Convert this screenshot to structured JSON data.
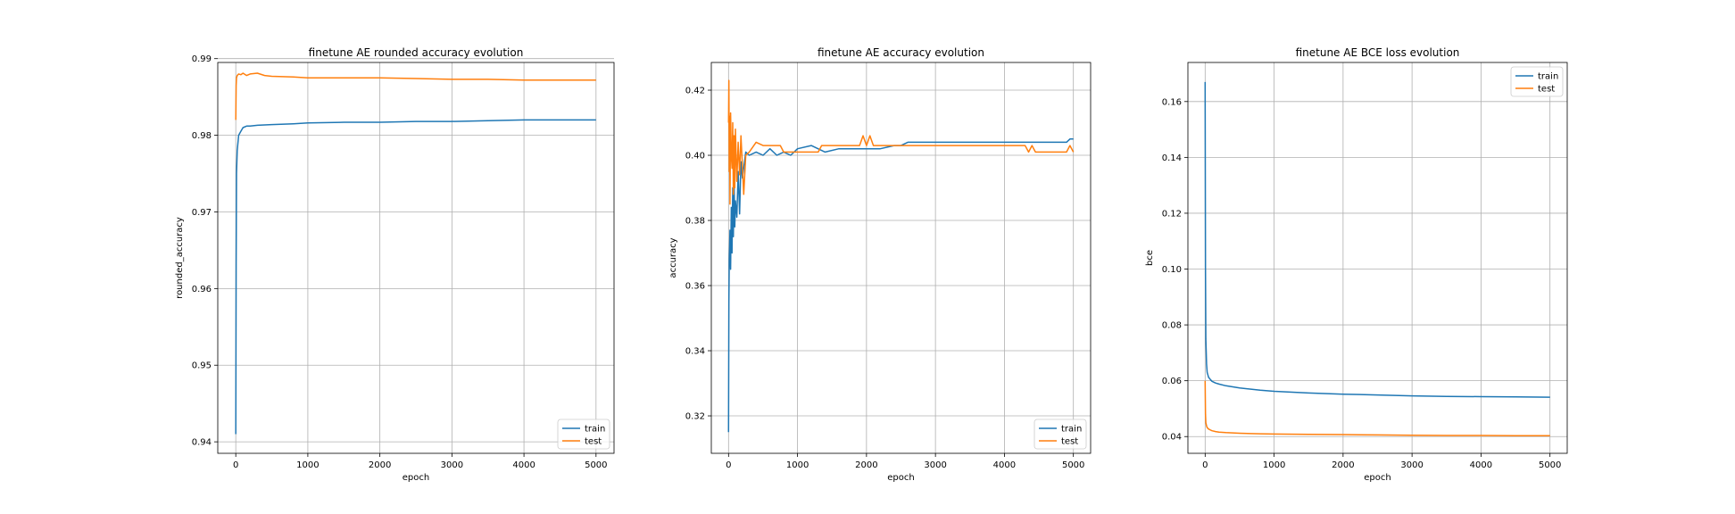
{
  "chart_data": [
    {
      "type": "line",
      "title": "finetune AE rounded accuracy evolution",
      "xlabel": "epoch",
      "ylabel": "rounded_accuracy",
      "xlim": [
        -250,
        5250
      ],
      "ylim": [
        0.9385,
        0.9895
      ],
      "xticks": [
        0,
        1000,
        2000,
        3000,
        4000,
        5000
      ],
      "xtick_labels": [
        "0",
        "1000",
        "2000",
        "3000",
        "4000",
        "5000"
      ],
      "yticks": [
        0.94,
        0.95,
        0.96,
        0.97,
        0.98,
        0.99
      ],
      "ytick_labels": [
        "0.94",
        "0.95",
        "0.96",
        "0.97",
        "0.98",
        "0.99"
      ],
      "grid": true,
      "legend": "lower-right",
      "series": [
        {
          "name": "train",
          "color": "#1f77b4",
          "x": [
            0,
            5,
            10,
            20,
            40,
            70,
            100,
            150,
            200,
            300,
            500,
            800,
            1000,
            1500,
            2000,
            2500,
            3000,
            3500,
            4000,
            4500,
            5000
          ],
          "y": [
            0.941,
            0.963,
            0.975,
            0.978,
            0.98,
            0.9805,
            0.981,
            0.9812,
            0.9812,
            0.9813,
            0.9814,
            0.9815,
            0.9816,
            0.9817,
            0.9817,
            0.9818,
            0.9818,
            0.9819,
            0.982,
            0.982,
            0.982
          ]
        },
        {
          "name": "test",
          "color": "#ff7f0e",
          "x": [
            0,
            5,
            10,
            20,
            40,
            70,
            100,
            150,
            200,
            300,
            400,
            500,
            800,
            1000,
            1500,
            2000,
            2500,
            3000,
            3500,
            4000,
            4500,
            5000
          ],
          "y": [
            0.982,
            0.9865,
            0.9875,
            0.9878,
            0.988,
            0.9879,
            0.9881,
            0.9878,
            0.988,
            0.9881,
            0.9878,
            0.9877,
            0.9876,
            0.9875,
            0.9875,
            0.9875,
            0.9874,
            0.9873,
            0.9873,
            0.9872,
            0.9872,
            0.9872
          ]
        }
      ]
    },
    {
      "type": "line",
      "title": "finetune AE accuracy evolution",
      "xlabel": "epoch",
      "ylabel": "accuracy",
      "xlim": [
        -250,
        5250
      ],
      "ylim": [
        0.3085,
        0.4285
      ],
      "xticks": [
        0,
        1000,
        2000,
        3000,
        4000,
        5000
      ],
      "xtick_labels": [
        "0",
        "1000",
        "2000",
        "3000",
        "4000",
        "5000"
      ],
      "yticks": [
        0.32,
        0.34,
        0.36,
        0.38,
        0.4,
        0.42
      ],
      "ytick_labels": [
        "0.32",
        "0.34",
        "0.36",
        "0.38",
        "0.40",
        "0.42"
      ],
      "grid": true,
      "legend": "lower-right",
      "series": [
        {
          "name": "train",
          "color": "#1f77b4",
          "x": [
            0,
            5,
            10,
            15,
            20,
            30,
            40,
            50,
            60,
            70,
            80,
            90,
            100,
            120,
            140,
            160,
            180,
            200,
            250,
            300,
            400,
            500,
            600,
            700,
            800,
            900,
            1000,
            1200,
            1400,
            1600,
            1800,
            2000,
            2200,
            2400,
            2500,
            2600,
            3000,
            3500,
            4000,
            4300,
            4500,
            4900,
            4950,
            5000
          ],
          "y": [
            0.315,
            0.355,
            0.368,
            0.372,
            0.377,
            0.365,
            0.384,
            0.37,
            0.39,
            0.375,
            0.392,
            0.378,
            0.386,
            0.381,
            0.395,
            0.382,
            0.398,
            0.393,
            0.401,
            0.4,
            0.401,
            0.4,
            0.402,
            0.4,
            0.401,
            0.4,
            0.402,
            0.403,
            0.401,
            0.402,
            0.402,
            0.402,
            0.402,
            0.403,
            0.403,
            0.404,
            0.404,
            0.404,
            0.404,
            0.404,
            0.404,
            0.404,
            0.405,
            0.405
          ]
        },
        {
          "name": "test",
          "color": "#ff7f0e",
          "x": [
            0,
            5,
            10,
            15,
            20,
            30,
            40,
            50,
            60,
            70,
            80,
            90,
            100,
            120,
            140,
            160,
            180,
            200,
            220,
            250,
            300,
            400,
            500,
            600,
            750,
            800,
            1000,
            1300,
            1350,
            1500,
            1900,
            1950,
            2000,
            2050,
            2100,
            2500,
            3000,
            3500,
            4300,
            4350,
            4400,
            4450,
            4500,
            4900,
            4950,
            5000
          ],
          "y": [
            0.41,
            0.423,
            0.395,
            0.412,
            0.385,
            0.413,
            0.4,
            0.396,
            0.41,
            0.388,
            0.406,
            0.39,
            0.408,
            0.392,
            0.404,
            0.394,
            0.406,
            0.397,
            0.388,
            0.4,
            0.401,
            0.404,
            0.403,
            0.403,
            0.403,
            0.401,
            0.401,
            0.401,
            0.403,
            0.403,
            0.403,
            0.406,
            0.403,
            0.406,
            0.403,
            0.403,
            0.403,
            0.403,
            0.403,
            0.401,
            0.403,
            0.401,
            0.401,
            0.401,
            0.403,
            0.401
          ]
        }
      ]
    },
    {
      "type": "line",
      "title": "finetune AE BCE loss evolution",
      "xlabel": "epoch",
      "ylabel": "bce",
      "xlim": [
        -250,
        5250
      ],
      "ylim": [
        0.034,
        0.174
      ],
      "xticks": [
        0,
        1000,
        2000,
        3000,
        4000,
        5000
      ],
      "xtick_labels": [
        "0",
        "1000",
        "2000",
        "3000",
        "4000",
        "5000"
      ],
      "yticks": [
        0.04,
        0.06,
        0.08,
        0.1,
        0.12,
        0.14,
        0.16
      ],
      "ytick_labels": [
        "0.04",
        "0.06",
        "0.08",
        "0.10",
        "0.12",
        "0.14",
        "0.16"
      ],
      "grid": true,
      "legend": "upper-right",
      "series": [
        {
          "name": "train",
          "color": "#1f77b4",
          "x": [
            0,
            5,
            10,
            20,
            30,
            50,
            80,
            100,
            150,
            200,
            300,
            500,
            800,
            1000,
            1500,
            2000,
            2500,
            3000,
            3500,
            4000,
            4500,
            5000
          ],
          "y": [
            0.167,
            0.1,
            0.075,
            0.066,
            0.063,
            0.0612,
            0.0603,
            0.0598,
            0.0592,
            0.0588,
            0.0582,
            0.0574,
            0.0566,
            0.0562,
            0.0556,
            0.0552,
            0.0549,
            0.0546,
            0.0544,
            0.0543,
            0.0542,
            0.0541
          ]
        },
        {
          "name": "test",
          "color": "#ff7f0e",
          "x": [
            0,
            5,
            10,
            20,
            30,
            50,
            80,
            100,
            150,
            200,
            300,
            500,
            800,
            1000,
            1500,
            2000,
            2500,
            3000,
            3500,
            4000,
            4500,
            5000
          ],
          "y": [
            0.06,
            0.048,
            0.045,
            0.0438,
            0.0432,
            0.0427,
            0.0423,
            0.0421,
            0.0418,
            0.0416,
            0.0414,
            0.0412,
            0.041,
            0.0409,
            0.0408,
            0.0407,
            0.0406,
            0.0405,
            0.0404,
            0.0404,
            0.0403,
            0.0403
          ]
        }
      ]
    }
  ]
}
